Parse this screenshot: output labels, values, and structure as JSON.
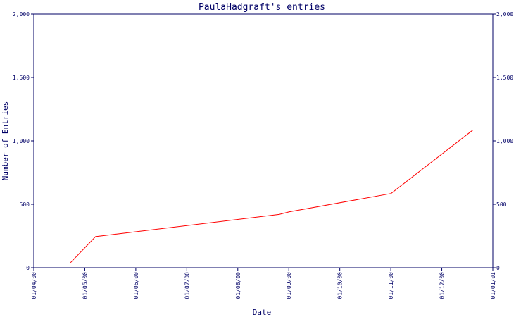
{
  "chart_data": {
    "type": "line",
    "title": "PaulaHadgraft's entries",
    "xlabel": "Date",
    "ylabel": "Number of Entries",
    "x_tick_labels": [
      "01/04/00",
      "01/05/00",
      "01/06/00",
      "01/07/00",
      "01/08/00",
      "01/09/00",
      "01/10/00",
      "01/11/00",
      "01/12/00",
      "01/01/01"
    ],
    "y_tick_labels": [
      "0",
      "500",
      "1,000",
      "1,500",
      "2,000"
    ],
    "y_ticks": [
      0,
      500,
      1000,
      1500,
      2000
    ],
    "ylim": [
      0,
      2000
    ],
    "xlim": [
      "2000-04-01",
      "2001-01-01"
    ],
    "grid": false,
    "series": [
      {
        "color": "#ff0000",
        "x": [
          "2000-04-23",
          "2000-05-08",
          "2000-08-26",
          "2000-09-01",
          "2000-11-01",
          "2000-12-20"
        ],
        "y": [
          40,
          245,
          420,
          440,
          585,
          1085
        ]
      }
    ]
  },
  "colors": {
    "axis": "#000066",
    "series": "#ff0000",
    "background": "#ffffff"
  }
}
